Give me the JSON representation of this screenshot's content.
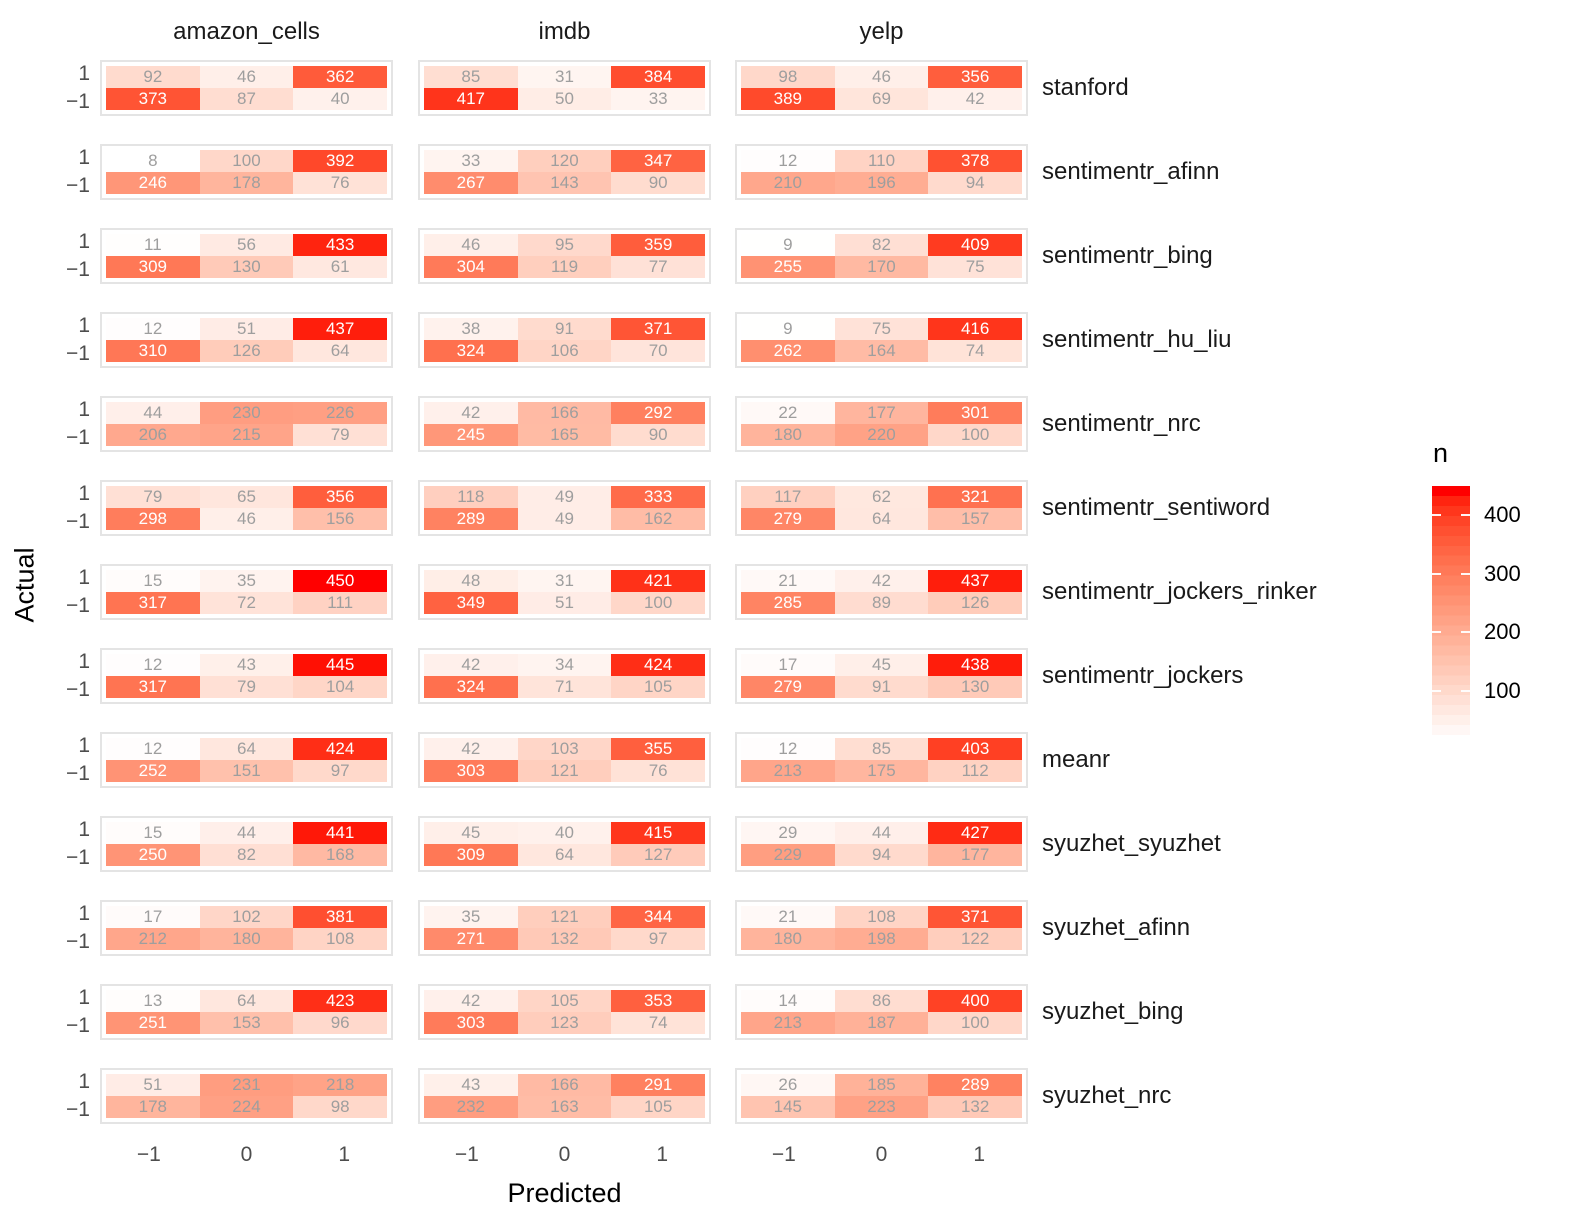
{
  "chart_data": {
    "type": "heatmap",
    "title": "",
    "xlabel": "Predicted",
    "ylabel": "Actual",
    "x_ticks": [
      "−1",
      "0",
      "1"
    ],
    "y_ticks": [
      "1",
      "−1"
    ],
    "facet_columns": [
      "amazon_cells",
      "imdb",
      "yelp"
    ],
    "facet_rows": [
      "stanford",
      "sentimentr_afinn",
      "sentimentr_bing",
      "sentimentr_hu_liu",
      "sentimentr_nrc",
      "sentimentr_sentiword",
      "sentimentr_jockers_rinker",
      "sentimentr_jockers",
      "meanr",
      "syuzhet_syuzhet",
      "syuzhet_afinn",
      "syuzhet_bing",
      "syuzhet_nrc"
    ],
    "legend": {
      "title": "n",
      "ticks": [
        400,
        300,
        200,
        100
      ],
      "low_color": "#FFFFFF",
      "high_color": "#FF0000",
      "domain": [
        8,
        450
      ],
      "position": "right"
    },
    "grid": "off",
    "cells": {
      "stanford": {
        "amazon_cells": [
          [
            92,
            46,
            362
          ],
          [
            373,
            87,
            40
          ]
        ],
        "imdb": [
          [
            85,
            31,
            384
          ],
          [
            417,
            50,
            33
          ]
        ],
        "yelp": [
          [
            98,
            46,
            356
          ],
          [
            389,
            69,
            42
          ]
        ]
      },
      "sentimentr_afinn": {
        "amazon_cells": [
          [
            8,
            100,
            392
          ],
          [
            246,
            178,
            76
          ]
        ],
        "imdb": [
          [
            33,
            120,
            347
          ],
          [
            267,
            143,
            90
          ]
        ],
        "yelp": [
          [
            12,
            110,
            378
          ],
          [
            210,
            196,
            94
          ]
        ]
      },
      "sentimentr_bing": {
        "amazon_cells": [
          [
            11,
            56,
            433
          ],
          [
            309,
            130,
            61
          ]
        ],
        "imdb": [
          [
            46,
            95,
            359
          ],
          [
            304,
            119,
            77
          ]
        ],
        "yelp": [
          [
            9,
            82,
            409
          ],
          [
            255,
            170,
            75
          ]
        ]
      },
      "sentimentr_hu_liu": {
        "amazon_cells": [
          [
            12,
            51,
            437
          ],
          [
            310,
            126,
            64
          ]
        ],
        "imdb": [
          [
            38,
            91,
            371
          ],
          [
            324,
            106,
            70
          ]
        ],
        "yelp": [
          [
            9,
            75,
            416
          ],
          [
            262,
            164,
            74
          ]
        ]
      },
      "sentimentr_nrc": {
        "amazon_cells": [
          [
            44,
            230,
            226
          ],
          [
            206,
            215,
            79
          ]
        ],
        "imdb": [
          [
            42,
            166,
            292
          ],
          [
            245,
            165,
            90
          ]
        ],
        "yelp": [
          [
            22,
            177,
            301
          ],
          [
            180,
            220,
            100
          ]
        ]
      },
      "sentimentr_sentiword": {
        "amazon_cells": [
          [
            79,
            65,
            356
          ],
          [
            298,
            46,
            156
          ]
        ],
        "imdb": [
          [
            118,
            49,
            333
          ],
          [
            289,
            49,
            162
          ]
        ],
        "yelp": [
          [
            117,
            62,
            321
          ],
          [
            279,
            64,
            157
          ]
        ]
      },
      "sentimentr_jockers_rinker": {
        "amazon_cells": [
          [
            15,
            35,
            450
          ],
          [
            317,
            72,
            111
          ]
        ],
        "imdb": [
          [
            48,
            31,
            421
          ],
          [
            349,
            51,
            100
          ]
        ],
        "yelp": [
          [
            21,
            42,
            437
          ],
          [
            285,
            89,
            126
          ]
        ]
      },
      "sentimentr_jockers": {
        "amazon_cells": [
          [
            12,
            43,
            445
          ],
          [
            317,
            79,
            104
          ]
        ],
        "imdb": [
          [
            42,
            34,
            424
          ],
          [
            324,
            71,
            105
          ]
        ],
        "yelp": [
          [
            17,
            45,
            438
          ],
          [
            279,
            91,
            130
          ]
        ]
      },
      "meanr": {
        "amazon_cells": [
          [
            12,
            64,
            424
          ],
          [
            252,
            151,
            97
          ]
        ],
        "imdb": [
          [
            42,
            103,
            355
          ],
          [
            303,
            121,
            76
          ]
        ],
        "yelp": [
          [
            12,
            85,
            403
          ],
          [
            213,
            175,
            112
          ]
        ]
      },
      "syuzhet_syuzhet": {
        "amazon_cells": [
          [
            15,
            44,
            441
          ],
          [
            250,
            82,
            168
          ]
        ],
        "imdb": [
          [
            45,
            40,
            415
          ],
          [
            309,
            64,
            127
          ]
        ],
        "yelp": [
          [
            29,
            44,
            427
          ],
          [
            229,
            94,
            177
          ]
        ]
      },
      "syuzhet_afinn": {
        "amazon_cells": [
          [
            17,
            102,
            381
          ],
          [
            212,
            180,
            108
          ]
        ],
        "imdb": [
          [
            35,
            121,
            344
          ],
          [
            271,
            132,
            97
          ]
        ],
        "yelp": [
          [
            21,
            108,
            371
          ],
          [
            180,
            198,
            122
          ]
        ]
      },
      "syuzhet_bing": {
        "amazon_cells": [
          [
            13,
            64,
            423
          ],
          [
            251,
            153,
            96
          ]
        ],
        "imdb": [
          [
            42,
            105,
            353
          ],
          [
            303,
            123,
            74
          ]
        ],
        "yelp": [
          [
            14,
            86,
            400
          ],
          [
            213,
            187,
            100
          ]
        ]
      },
      "syuzhet_nrc": {
        "amazon_cells": [
          [
            51,
            231,
            218
          ],
          [
            178,
            224,
            98
          ]
        ],
        "imdb": [
          [
            43,
            166,
            291
          ],
          [
            232,
            163,
            105
          ]
        ],
        "yelp": [
          [
            26,
            185,
            289
          ],
          [
            145,
            223,
            132
          ]
        ]
      }
    }
  }
}
